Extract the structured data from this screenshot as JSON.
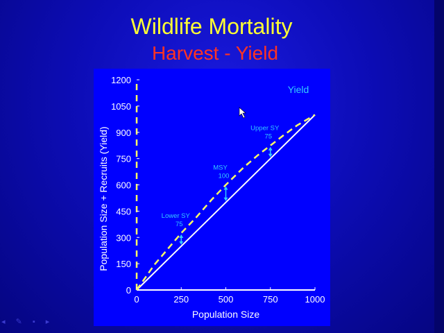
{
  "slide": {
    "title": "Wildlife Mortality",
    "subtitle": "Harvest - Yield"
  },
  "chart_data": {
    "type": "line",
    "xlabel": "Population Size",
    "ylabel": "Population Size + Recruits (Yield)",
    "xlim": [
      0,
      1000
    ],
    "ylim": [
      0,
      1200
    ],
    "x_ticks": [
      0,
      250,
      500,
      750,
      1000
    ],
    "y_ticks": [
      0,
      150,
      300,
      450,
      600,
      750,
      900,
      1050,
      1200
    ],
    "legend_text": "Yield",
    "series": [
      {
        "x": [
          0,
          1000
        ],
        "y": [
          0,
          1000
        ],
        "style": "solid",
        "color": "#ffffff"
      },
      {
        "x": [
          0,
          100,
          175,
          250,
          330,
          420,
          500,
          600,
          680,
          750,
          820,
          900,
          1000
        ],
        "y": [
          0,
          145,
          235,
          325,
          410,
          515,
          600,
          700,
          770,
          825,
          880,
          940,
          1000
        ],
        "style": "dashed",
        "color": "#ffff66"
      }
    ],
    "yield_annotations": [
      {
        "label": "Lower SY",
        "value": "75",
        "x": 250
      },
      {
        "label": "MSY",
        "value": "100",
        "x": 500
      },
      {
        "label": "Upper SY",
        "value": "75",
        "x": 750
      }
    ],
    "colors": {
      "axis": "#ffffff",
      "y_axis_dash": "#ffff66",
      "annotation": "#33ccff",
      "tick_text": "#ffffff"
    }
  }
}
